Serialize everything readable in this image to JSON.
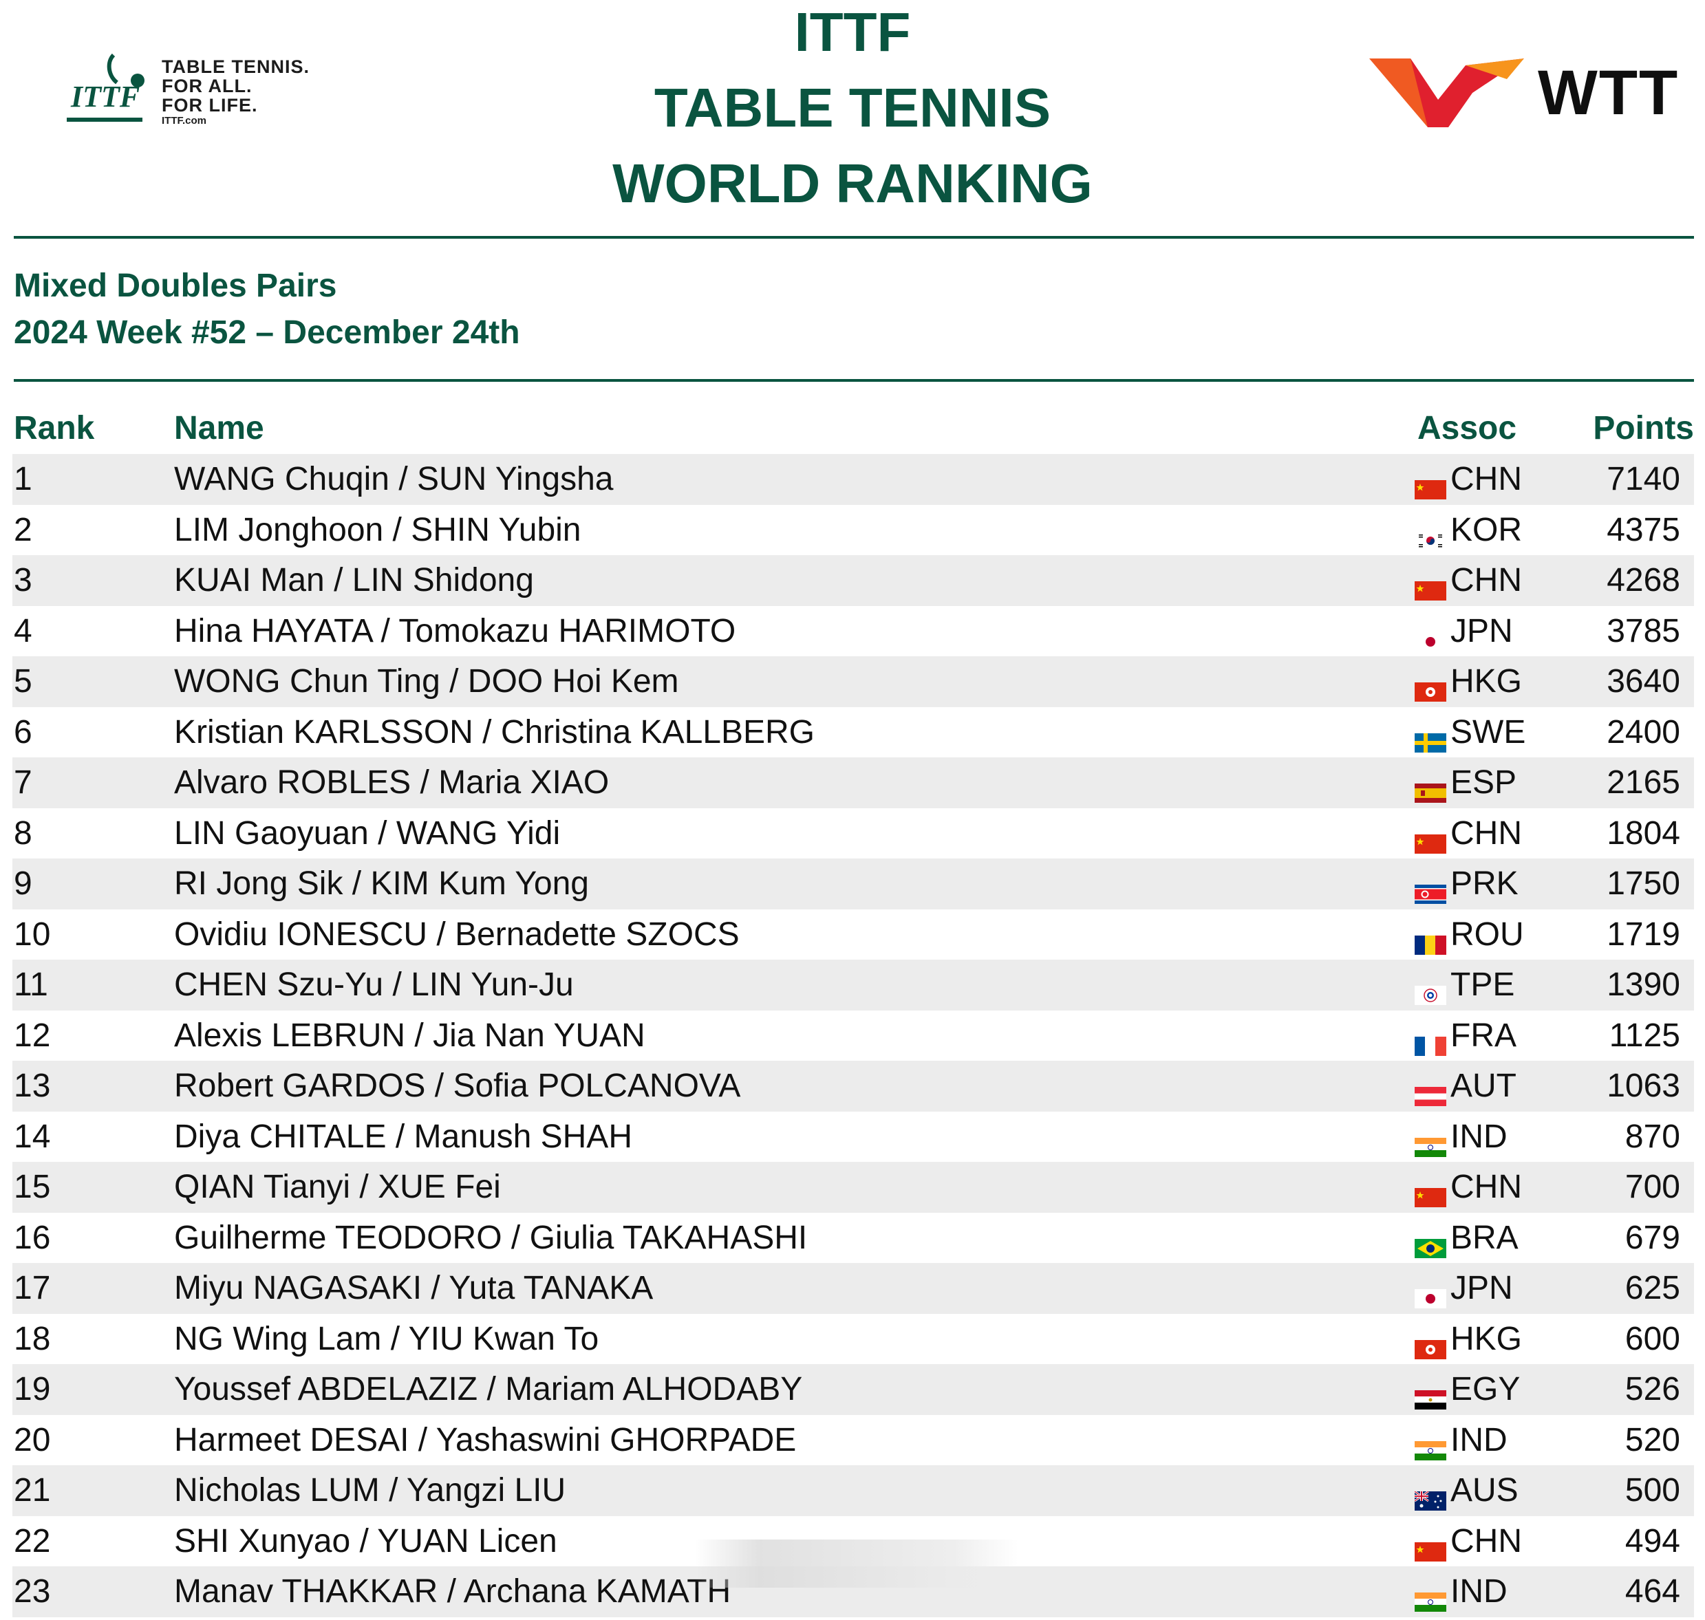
{
  "header": {
    "ittf_tagline": [
      "TABLE TENNIS.",
      "FOR ALL.",
      "FOR LIFE."
    ],
    "ittf_url": "ITTF.com",
    "ittf_mark_text": "ITTF",
    "title_lines": [
      "ITTF",
      "TABLE TENNIS",
      "WORLD RANKING"
    ],
    "wtt_text": "WTT"
  },
  "category": "Mixed Doubles Pairs",
  "week": "2024 Week #52 – December 24th",
  "columns": {
    "rank": "Rank",
    "name": "Name",
    "assoc": "Assoc",
    "points": "Points"
  },
  "colors": {
    "brand_green": "#0a5440",
    "row_shade": "#ececec",
    "wtt_orange": "#f05a22",
    "wtt_red": "#e0202e"
  },
  "rows": [
    {
      "rank": "1",
      "name": "WANG Chuqin / SUN Yingsha",
      "assoc": "CHN",
      "points": "7140",
      "flag": "flag-chn-icon"
    },
    {
      "rank": "2",
      "name": "LIM Jonghoon / SHIN Yubin",
      "assoc": "KOR",
      "points": "4375",
      "flag": "flag-kor-icon"
    },
    {
      "rank": "3",
      "name": "KUAI Man / LIN Shidong",
      "assoc": "CHN",
      "points": "4268",
      "flag": "flag-chn-icon"
    },
    {
      "rank": "4",
      "name": "Hina HAYATA / Tomokazu HARIMOTO",
      "assoc": "JPN",
      "points": "3785",
      "flag": "flag-jpn-icon"
    },
    {
      "rank": "5",
      "name": "WONG Chun Ting / DOO Hoi Kem",
      "assoc": "HKG",
      "points": "3640",
      "flag": "flag-hkg-icon"
    },
    {
      "rank": "6",
      "name": "Kristian KARLSSON / Christina KALLBERG",
      "assoc": "SWE",
      "points": "2400",
      "flag": "flag-swe-icon"
    },
    {
      "rank": "7",
      "name": "Alvaro ROBLES / Maria XIAO",
      "assoc": "ESP",
      "points": "2165",
      "flag": "flag-esp-icon"
    },
    {
      "rank": "8",
      "name": "LIN Gaoyuan / WANG Yidi",
      "assoc": "CHN",
      "points": "1804",
      "flag": "flag-chn-icon"
    },
    {
      "rank": "9",
      "name": "RI Jong Sik / KIM Kum Yong",
      "assoc": "PRK",
      "points": "1750",
      "flag": "flag-prk-icon"
    },
    {
      "rank": "10",
      "name": "Ovidiu IONESCU / Bernadette SZOCS",
      "assoc": "ROU",
      "points": "1719",
      "flag": "flag-rou-icon"
    },
    {
      "rank": "11",
      "name": "CHEN Szu-Yu / LIN Yun-Ju",
      "assoc": "TPE",
      "points": "1390",
      "flag": "flag-tpe-icon"
    },
    {
      "rank": "12",
      "name": "Alexis LEBRUN / Jia Nan YUAN",
      "assoc": "FRA",
      "points": "1125",
      "flag": "flag-fra-icon"
    },
    {
      "rank": "13",
      "name": "Robert GARDOS / Sofia POLCANOVA",
      "assoc": "AUT",
      "points": "1063",
      "flag": "flag-aut-icon"
    },
    {
      "rank": "14",
      "name": "Diya CHITALE / Manush SHAH",
      "assoc": "IND",
      "points": "870",
      "flag": "flag-ind-icon"
    },
    {
      "rank": "15",
      "name": "QIAN Tianyi / XUE Fei",
      "assoc": "CHN",
      "points": "700",
      "flag": "flag-chn-icon"
    },
    {
      "rank": "16",
      "name": "Guilherme TEODORO / Giulia TAKAHASHI",
      "assoc": "BRA",
      "points": "679",
      "flag": "flag-bra-icon"
    },
    {
      "rank": "17",
      "name": "Miyu NAGASAKI / Yuta TANAKA",
      "assoc": "JPN",
      "points": "625",
      "flag": "flag-jpn-icon"
    },
    {
      "rank": "18",
      "name": "NG Wing Lam / YIU Kwan To",
      "assoc": "HKG",
      "points": "600",
      "flag": "flag-hkg-icon"
    },
    {
      "rank": "19",
      "name": "Youssef ABDELAZIZ / Mariam ALHODABY",
      "assoc": "EGY",
      "points": "526",
      "flag": "flag-egy-icon"
    },
    {
      "rank": "20",
      "name": "Harmeet DESAI / Yashaswini GHORPADE",
      "assoc": "IND",
      "points": "520",
      "flag": "flag-ind-icon"
    },
    {
      "rank": "21",
      "name": "Nicholas LUM / Yangzi LIU",
      "assoc": "AUS",
      "points": "500",
      "flag": "flag-aus-icon"
    },
    {
      "rank": "22",
      "name": "SHI Xunyao / YUAN Licen",
      "assoc": "CHN",
      "points": "494",
      "flag": "flag-chn-icon"
    },
    {
      "rank": "23",
      "name": "Manav THAKKAR / Archana KAMATH",
      "assoc": "IND",
      "points": "464",
      "flag": "flag-ind-icon"
    }
  ]
}
